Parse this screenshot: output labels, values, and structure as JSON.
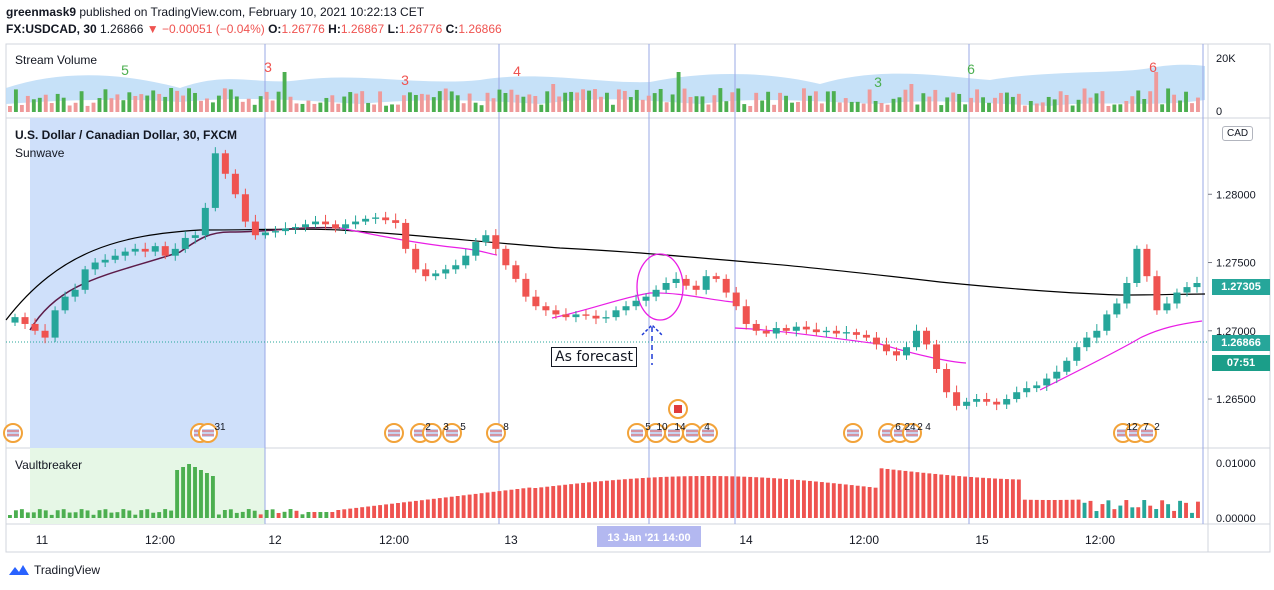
{
  "header": {
    "author": "greenmask9",
    "published_text": " published on TradingView.com, February 10, 2021 10:22:13 CET",
    "symbol": "FX:USDCAD, 30",
    "last": "1.26866",
    "change_text": "−0.00051 (−0.04%)",
    "o_label": "O:",
    "o_val": "1.26776",
    "h_label": "H:",
    "h_val": "1.26867",
    "l_label": "L:",
    "l_val": "1.26776",
    "c_label": "C:",
    "c_val": "1.26866"
  },
  "panes": {
    "volume_label": "Stream Volume",
    "main_label": "U.S. Dollar / Canadian Dollar, 30, FXCM",
    "indicator_label": "Sunwave",
    "osc_label": "Vaultbreaker",
    "currency_tag": "CAD"
  },
  "annotation": {
    "text": "As forecast"
  },
  "price_badges": {
    "last_price": "1.27305",
    "current_price": "1.26866",
    "countdown": "07:51"
  },
  "footer": {
    "brand": "TradingView"
  },
  "colors": {
    "up": "#26a69a",
    "down": "#ef5350",
    "vol_up": "#4caf50",
    "vol_down": "#ef9a9a",
    "highlight_blue": "#cfe0fa",
    "highlight_green": "#e6f7e6",
    "sma": "#000000",
    "magenta": "#e91ee5",
    "badge_green": "#26a69a",
    "badge_teal": "#1b9e89",
    "vline": "#9aa8e6"
  },
  "chart_data": {
    "type": "candlestick",
    "x_ticks": [
      "11",
      "12:00",
      "12",
      "12:00",
      "13",
      "12:00",
      "14",
      "12:00",
      "15",
      "12:00"
    ],
    "crosshair_date": "13 Jan '21  14:00",
    "y_ticks": [
      "1.28000",
      "1.27500",
      "1.27000",
      "1.26500"
    ],
    "y_range": [
      1.262,
      1.285
    ],
    "volume_axis": [
      "20K",
      "0"
    ],
    "osc_axis": [
      "0.01000",
      "0.00000"
    ],
    "volume_numbers": [
      "5",
      "3",
      "3",
      "4",
      "3",
      "6",
      "6"
    ],
    "event_numbers": [
      "31",
      "2",
      "3",
      "5",
      "8",
      "5",
      "10",
      "14",
      "4",
      "6",
      "24",
      "2",
      "4",
      "12",
      "7",
      "2"
    ],
    "closes": [
      1.271,
      1.2705,
      1.27,
      1.2695,
      1.2715,
      1.2725,
      1.273,
      1.2745,
      1.275,
      1.2752,
      1.2755,
      1.2758,
      1.276,
      1.2758,
      1.2762,
      1.2755,
      1.276,
      1.2768,
      1.277,
      1.279,
      1.283,
      1.2815,
      1.28,
      1.278,
      1.277,
      1.2772,
      1.2773,
      1.2775,
      1.2776,
      1.2778,
      1.278,
      1.2778,
      1.2775,
      1.2778,
      1.278,
      1.2782,
      1.2783,
      1.2781,
      1.2779,
      1.276,
      1.2745,
      1.274,
      1.2742,
      1.2745,
      1.2748,
      1.2755,
      1.2765,
      1.277,
      1.276,
      1.2748,
      1.2738,
      1.2725,
      1.2718,
      1.2715,
      1.2712,
      1.271,
      1.2712,
      1.2711,
      1.2709,
      1.271,
      1.2715,
      1.2718,
      1.2722,
      1.2725,
      1.273,
      1.2735,
      1.2738,
      1.2733,
      1.273,
      1.274,
      1.2738,
      1.2728,
      1.2718,
      1.2705,
      1.27,
      1.2698,
      1.2702,
      1.27,
      1.2703,
      1.2701,
      1.2699,
      1.27,
      1.2698,
      1.2699,
      1.2697,
      1.2695,
      1.269,
      1.2685,
      1.2682,
      1.2688,
      1.27,
      1.269,
      1.2672,
      1.2655,
      1.2645,
      1.2648,
      1.265,
      1.2648,
      1.2646,
      1.265,
      1.2655,
      1.2658,
      1.266,
      1.2665,
      1.267,
      1.2678,
      1.2688,
      1.2695,
      1.27,
      1.2712,
      1.272,
      1.2735,
      1.276,
      1.274,
      1.2715,
      1.272,
      1.2728,
      1.2732,
      1.2735
    ]
  }
}
